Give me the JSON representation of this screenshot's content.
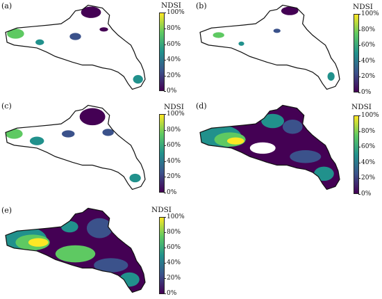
{
  "colorbar": {
    "title": "NDSI",
    "ticks": [
      "100%",
      "80%",
      "60%",
      "40%",
      "20%",
      "0%"
    ]
  },
  "colors": {
    "low": "#440154",
    "mid_low": "#3b528b",
    "mid": "#21918c",
    "mid_high": "#5ec962",
    "high": "#fde725",
    "boundary": "#111111",
    "no_data": "#ffffff"
  },
  "panels": [
    {
      "label": "(a)",
      "coverage": "sparse"
    },
    {
      "label": "(b)",
      "coverage": "very sparse"
    },
    {
      "label": "(c)",
      "coverage": "sparse"
    },
    {
      "label": "(d)",
      "coverage": "mostly full"
    },
    {
      "label": "(e)",
      "coverage": "full"
    }
  ]
}
